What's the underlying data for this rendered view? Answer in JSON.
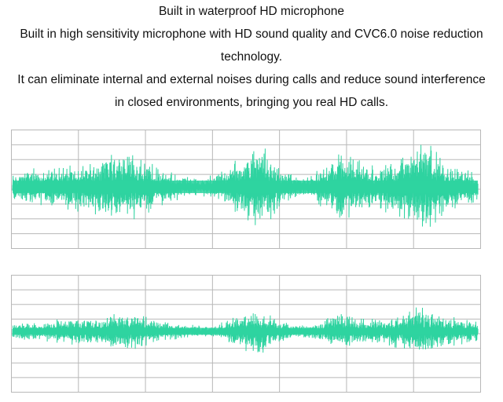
{
  "description": {
    "lines": [
      "Built in waterproof HD microphone",
      "Built in high sensitivity microphone with HD sound quality and CVC6.0 noise reduction",
      "technology.",
      "It can eliminate internal and external noises during calls and reduce sound interference",
      "in closed environments, bringing you real HD calls."
    ]
  },
  "colors": {
    "waveform": "#2ed3a0",
    "grid": "#b8b8b8",
    "text": "#111111"
  },
  "waveforms": [
    {
      "id": "before-noise-reduction",
      "grid": true,
      "amplitude": "high"
    },
    {
      "id": "after-noise-reduction",
      "grid": true,
      "amplitude": "low"
    }
  ]
}
